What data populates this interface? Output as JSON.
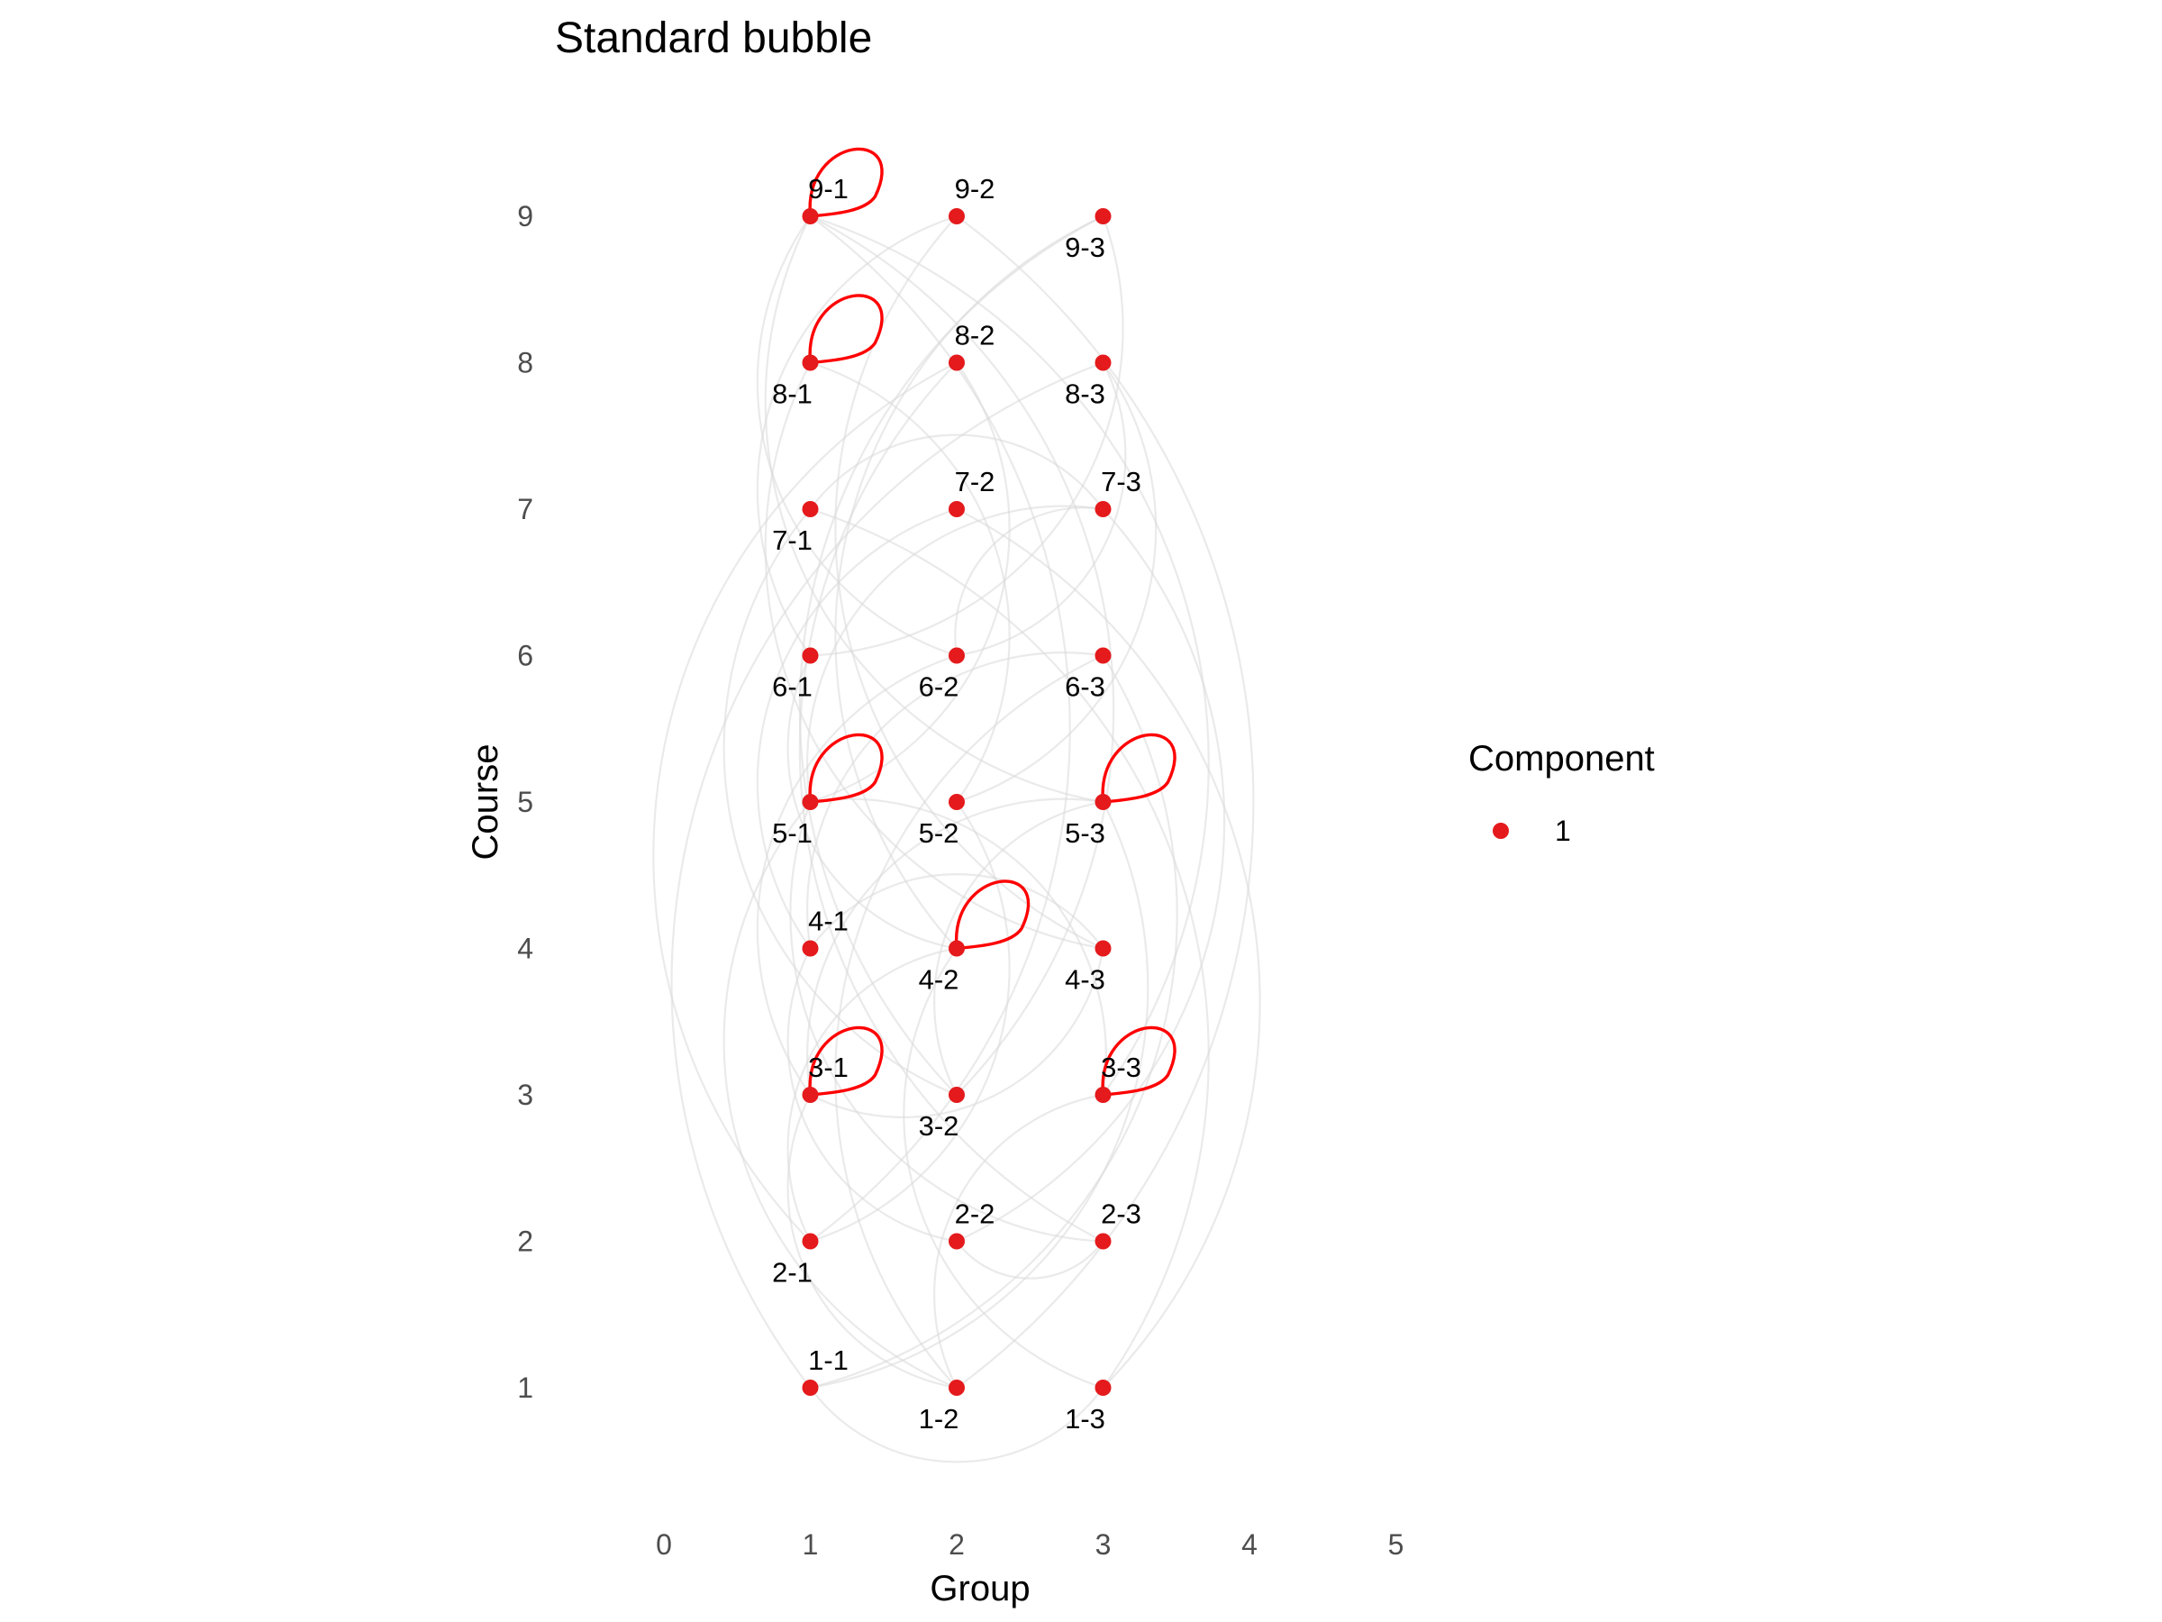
{
  "chart_data": {
    "type": "scatter",
    "title": "Standard bubble",
    "xlabel": "Group",
    "ylabel": "Course",
    "xlim": [
      0,
      5
    ],
    "ylim": [
      1,
      9
    ],
    "x_ticks": [
      "0",
      "1",
      "2",
      "3",
      "4",
      "5"
    ],
    "y_ticks": [
      "1",
      "2",
      "3",
      "4",
      "5",
      "6",
      "7",
      "8",
      "9"
    ],
    "grid": false,
    "legend": {
      "title": "Component",
      "placement": "right",
      "entries": [
        {
          "label": "1",
          "color": "#e41a1c"
        }
      ]
    },
    "point_color": "#e41a1c",
    "self_loop_color": "#ff0000",
    "edge_color": "#d9d9d9",
    "points": [
      {
        "label": "1-1",
        "x": 1,
        "y": 1,
        "label_pos": "above"
      },
      {
        "label": "1-2",
        "x": 2,
        "y": 1,
        "label_pos": "below"
      },
      {
        "label": "1-3",
        "x": 3,
        "y": 1,
        "label_pos": "below"
      },
      {
        "label": "2-1",
        "x": 1,
        "y": 2,
        "label_pos": "below"
      },
      {
        "label": "2-2",
        "x": 2,
        "y": 2,
        "label_pos": "above"
      },
      {
        "label": "2-3",
        "x": 3,
        "y": 2,
        "label_pos": "above"
      },
      {
        "label": "3-1",
        "x": 1,
        "y": 3,
        "label_pos": "above"
      },
      {
        "label": "3-2",
        "x": 2,
        "y": 3,
        "label_pos": "below"
      },
      {
        "label": "3-3",
        "x": 3,
        "y": 3,
        "label_pos": "above"
      },
      {
        "label": "4-1",
        "x": 1,
        "y": 4,
        "label_pos": "above"
      },
      {
        "label": "4-2",
        "x": 2,
        "y": 4,
        "label_pos": "below"
      },
      {
        "label": "4-3",
        "x": 3,
        "y": 4,
        "label_pos": "below"
      },
      {
        "label": "5-1",
        "x": 1,
        "y": 5,
        "label_pos": "below"
      },
      {
        "label": "5-2",
        "x": 2,
        "y": 5,
        "label_pos": "below"
      },
      {
        "label": "5-3",
        "x": 3,
        "y": 5,
        "label_pos": "below"
      },
      {
        "label": "6-1",
        "x": 1,
        "y": 6,
        "label_pos": "below"
      },
      {
        "label": "6-2",
        "x": 2,
        "y": 6,
        "label_pos": "below"
      },
      {
        "label": "6-3",
        "x": 3,
        "y": 6,
        "label_pos": "below"
      },
      {
        "label": "7-1",
        "x": 1,
        "y": 7,
        "label_pos": "below"
      },
      {
        "label": "7-2",
        "x": 2,
        "y": 7,
        "label_pos": "above"
      },
      {
        "label": "7-3",
        "x": 3,
        "y": 7,
        "label_pos": "above"
      },
      {
        "label": "8-1",
        "x": 1,
        "y": 8,
        "label_pos": "below"
      },
      {
        "label": "8-2",
        "x": 2,
        "y": 8,
        "label_pos": "above"
      },
      {
        "label": "8-3",
        "x": 3,
        "y": 8,
        "label_pos": "below"
      },
      {
        "label": "9-1",
        "x": 1,
        "y": 9,
        "label_pos": "above"
      },
      {
        "label": "9-2",
        "x": 2,
        "y": 9,
        "label_pos": "above"
      },
      {
        "label": "9-3",
        "x": 3,
        "y": 9,
        "label_pos": "below"
      }
    ],
    "self_loops": [
      "9-1",
      "8-1",
      "5-1",
      "5-3",
      "4-2",
      "3-1",
      "3-3"
    ],
    "edges": [
      [
        "9-1",
        "6-2"
      ],
      [
        "9-1",
        "3-3"
      ],
      [
        "9-1",
        "5-3"
      ],
      [
        "9-1",
        "2-1"
      ],
      [
        "9-2",
        "4-3"
      ],
      [
        "9-2",
        "1-2"
      ],
      [
        "9-3",
        "3-2"
      ],
      [
        "9-3",
        "6-1"
      ],
      [
        "8-1",
        "4-3"
      ],
      [
        "8-1",
        "5-2"
      ],
      [
        "8-2",
        "2-3"
      ],
      [
        "8-2",
        "5-1"
      ],
      [
        "8-3",
        "1-1"
      ],
      [
        "8-3",
        "6-2"
      ],
      [
        "7-1",
        "3-2"
      ],
      [
        "7-1",
        "7-3"
      ],
      [
        "7-2",
        "4-1"
      ],
      [
        "7-2",
        "1-3"
      ],
      [
        "7-3",
        "5-1"
      ],
      [
        "7-3",
        "2-2"
      ],
      [
        "6-1",
        "4-2"
      ],
      [
        "6-1",
        "9-2"
      ],
      [
        "6-2",
        "3-1"
      ],
      [
        "6-3",
        "1-1"
      ],
      [
        "6-3",
        "4-1"
      ],
      [
        "5-1",
        "3-3"
      ],
      [
        "5-1",
        "1-2"
      ],
      [
        "5-2",
        "2-1"
      ],
      [
        "5-2",
        "8-3"
      ],
      [
        "5-3",
        "1-1"
      ],
      [
        "5-3",
        "3-1"
      ],
      [
        "4-1",
        "4-3"
      ],
      [
        "4-1",
        "2-2"
      ],
      [
        "4-2",
        "9-3"
      ],
      [
        "4-2",
        "1-3"
      ],
      [
        "4-3",
        "3-1"
      ],
      [
        "3-1",
        "1-2"
      ],
      [
        "3-2",
        "5-3"
      ],
      [
        "3-3",
        "1-2"
      ],
      [
        "2-1",
        "4-2"
      ],
      [
        "2-2",
        "2-3"
      ],
      [
        "2-3",
        "5-1"
      ],
      [
        "1-1",
        "1-3"
      ],
      [
        "1-2",
        "6-3"
      ],
      [
        "1-3",
        "7-1"
      ],
      [
        "2-1",
        "8-2"
      ],
      [
        "3-2",
        "9-1"
      ],
      [
        "6-2",
        "7-3"
      ]
    ]
  }
}
